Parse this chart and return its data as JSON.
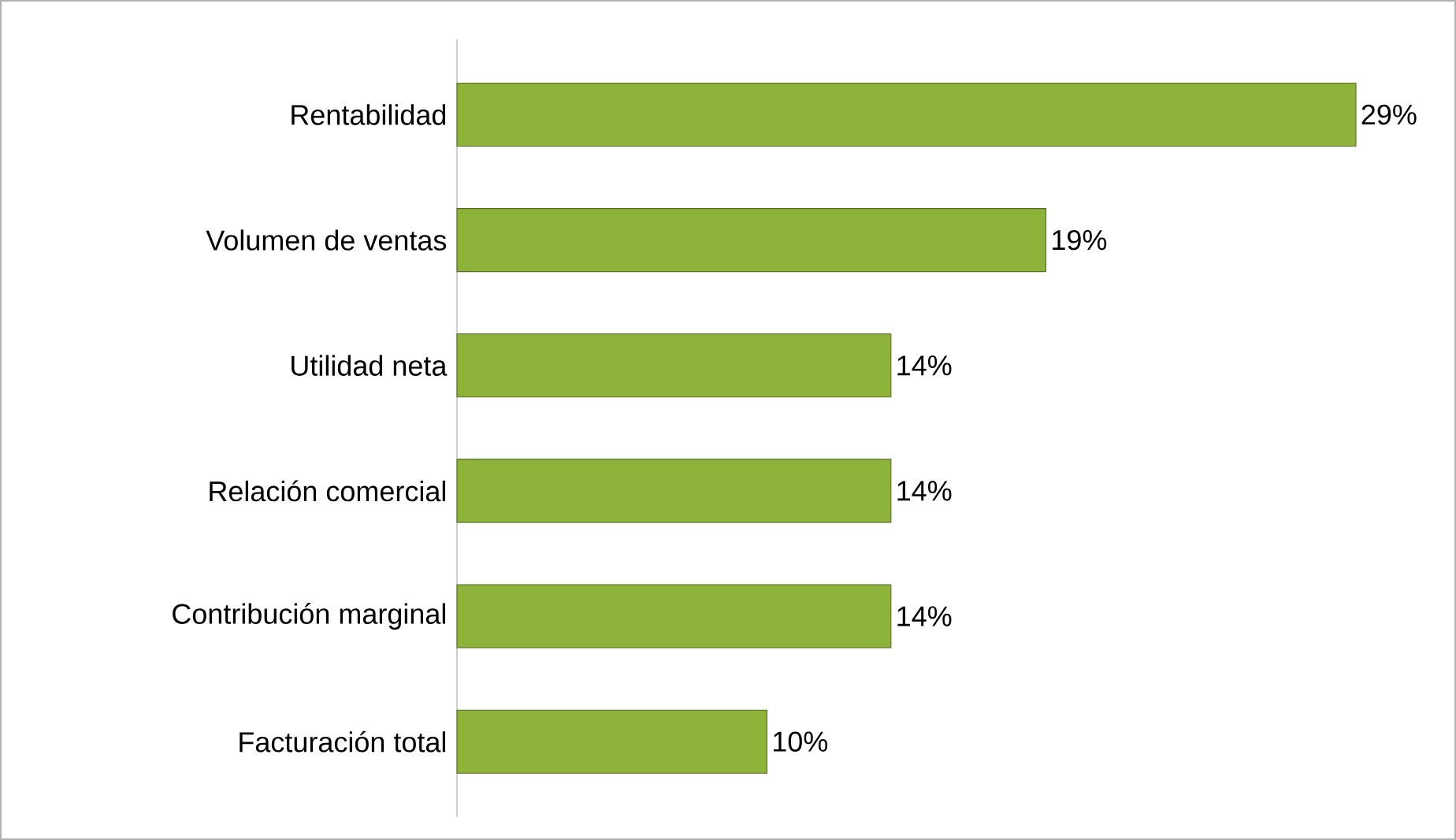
{
  "chart_data": {
    "type": "bar",
    "orientation": "horizontal",
    "categories": [
      "Rentabilidad",
      "Volumen de ventas",
      "Utilidad neta",
      "Relación comercial",
      "Contribución marginal",
      "Facturación total"
    ],
    "values": [
      29,
      19,
      14,
      14,
      14,
      10
    ],
    "value_labels": [
      "29%",
      "19%",
      "14%",
      "14%",
      "14%",
      "10%"
    ],
    "color": "#8db33a"
  }
}
